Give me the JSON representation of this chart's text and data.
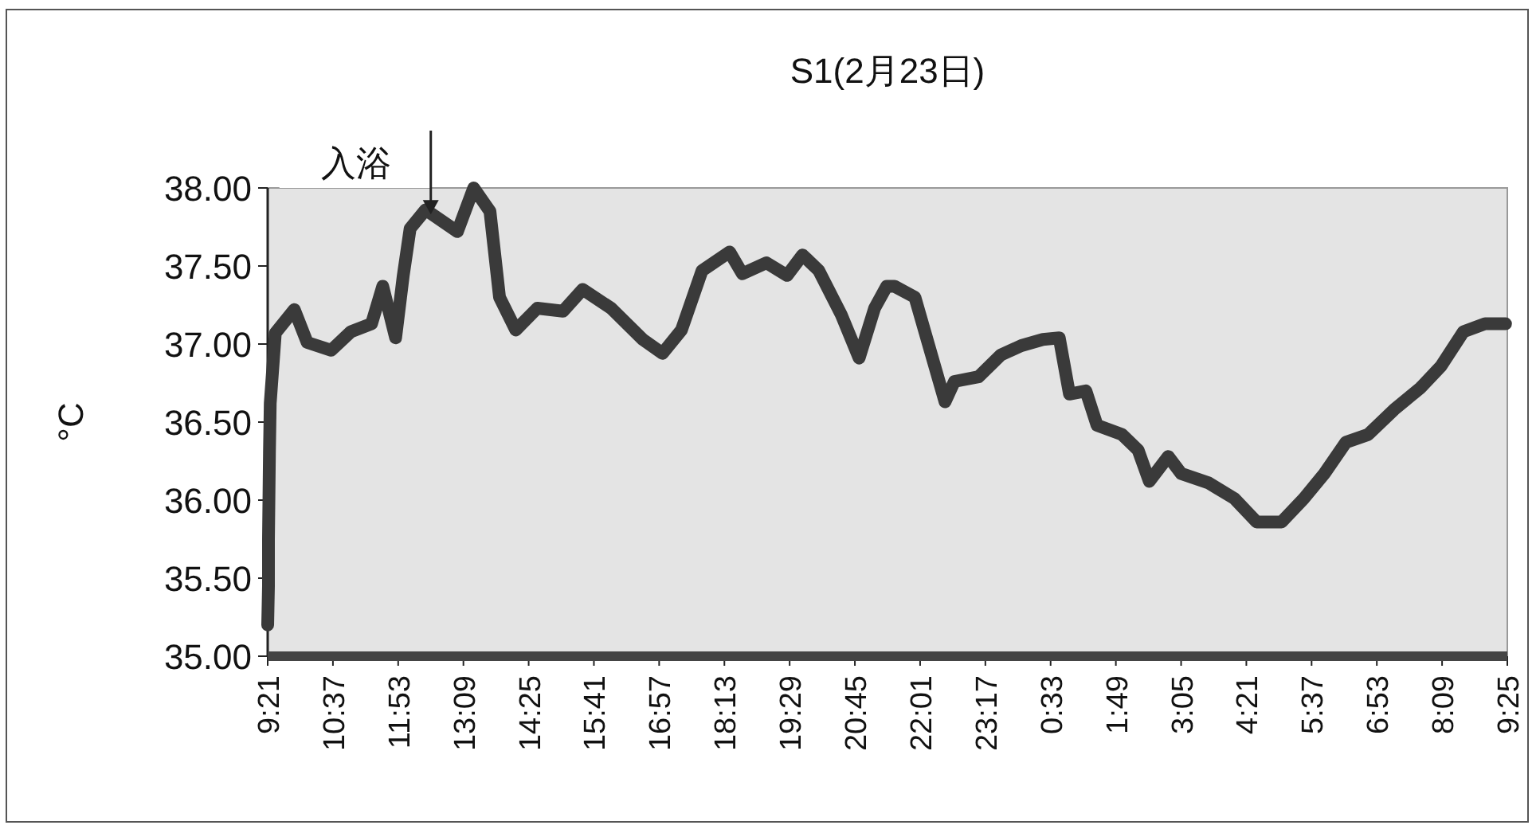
{
  "chart_data": {
    "type": "line",
    "title": "S1(2月23日)",
    "ylabel": "°C",
    "x": [
      "--02-23T09:21",
      "--02-23T09:22",
      "--02-23T09:22",
      "--02-23T09:23",
      "--02-23T09:24",
      "--02-23T09:30",
      "--02-23T09:52",
      "--02-23T10:07",
      "--02-23T10:35",
      "--02-23T10:58",
      "--02-23T11:22",
      "--02-23T11:35",
      "--02-23T11:50",
      "--02-23T11:59",
      "--02-23T12:07",
      "--02-23T12:25",
      "--02-23T13:02",
      "--02-23T13:21",
      "--02-23T13:40",
      "--02-23T13:51",
      "--02-23T14:10",
      "--02-23T14:35",
      "--02-23T15:05",
      "--02-23T15:28",
      "--02-23T16:01",
      "--02-23T16:38",
      "--02-23T17:01",
      "--02-23T17:23",
      "--02-23T17:47",
      "--02-23T18:19",
      "--02-23T18:34",
      "--02-23T19:02",
      "--02-23T19:26",
      "--02-23T19:44",
      "--02-23T20:03",
      "--02-23T20:29",
      "--02-23T20:50",
      "--02-23T21:08",
      "--02-23T21:22",
      "--02-23T21:31",
      "--02-23T21:55",
      "--02-23T22:30",
      "--02-23T22:41",
      "--02-23T23:09",
      "--02-23T23:35",
      "--02-23T23:59",
      "--02-24T00:24",
      "--02-24T00:43",
      "--02-24T00:55",
      "--02-24T01:14",
      "--02-24T01:27",
      "--02-24T01:56",
      "--02-24T02:15",
      "--02-24T02:28",
      "--02-24T02:50",
      "--02-24T03:05",
      "--02-24T03:37",
      "--02-24T04:07",
      "--02-24T04:33",
      "--02-24T05:02",
      "--02-24T05:28",
      "--02-24T05:52",
      "--02-24T06:17",
      "--02-24T06:43",
      "--02-24T07:13",
      "--02-24T07:44",
      "--02-24T08:08",
      "--02-24T08:34",
      "--02-24T08:59",
      "--02-24T09:23"
    ],
    "series": [
      {
        "color": "#3a3a3a",
        "values": [
          35.2,
          35.45,
          35.75,
          36.3,
          36.62,
          37.07,
          37.22,
          37.01,
          36.96,
          37.08,
          37.13,
          37.37,
          37.04,
          37.44,
          37.74,
          37.86,
          37.72,
          38.0,
          37.85,
          37.3,
          37.09,
          37.23,
          37.21,
          37.35,
          37.23,
          37.03,
          36.94,
          37.09,
          37.47,
          37.59,
          37.45,
          37.52,
          37.44,
          37.57,
          37.47,
          37.19,
          36.91,
          37.23,
          37.37,
          37.37,
          37.3,
          36.63,
          36.76,
          36.79,
          36.93,
          36.99,
          37.03,
          37.04,
          36.68,
          36.7,
          36.48,
          36.42,
          36.32,
          36.12,
          36.28,
          36.17,
          36.11,
          36.01,
          35.86,
          35.86,
          36.01,
          36.17,
          36.37,
          36.42,
          36.58,
          36.72,
          36.86,
          37.08,
          37.13,
          37.13
        ]
      }
    ],
    "xlim": [
      "--02-23T09:21",
      "--02-24T09:25"
    ],
    "xticks": [
      {
        "value": "--02-23T09:21",
        "label": "9:21"
      },
      {
        "value": "--02-23T10:37",
        "label": "10:37"
      },
      {
        "value": "--02-23T11:53",
        "label": "11:53"
      },
      {
        "value": "--02-23T13:09",
        "label": "13:09"
      },
      {
        "value": "--02-23T14:25",
        "label": "14:25"
      },
      {
        "value": "--02-23T15:41",
        "label": "15:41"
      },
      {
        "value": "--02-23T16:57",
        "label": "16:57"
      },
      {
        "value": "--02-23T18:13",
        "label": "18:13"
      },
      {
        "value": "--02-23T19:29",
        "label": "19:29"
      },
      {
        "value": "--02-23T20:45",
        "label": "20:45"
      },
      {
        "value": "--02-23T22:01",
        "label": "22:01"
      },
      {
        "value": "--02-23T23:17",
        "label": "23:17"
      },
      {
        "value": "--02-24T00:33",
        "label": "0:33"
      },
      {
        "value": "--02-24T01:49",
        "label": "1:49"
      },
      {
        "value": "--02-24T03:05",
        "label": "3:05"
      },
      {
        "value": "--02-24T04:21",
        "label": "4:21"
      },
      {
        "value": "--02-24T05:37",
        "label": "5:37"
      },
      {
        "value": "--02-24T06:53",
        "label": "6:53"
      },
      {
        "value": "--02-24T08:09",
        "label": "8:09"
      },
      {
        "value": "--02-24T09:25",
        "label": "9:25"
      }
    ],
    "ylim": [
      35,
      38
    ],
    "yticks": [
      {
        "value": 35,
        "label": "35.00"
      },
      {
        "value": 35.5,
        "label": "35.50"
      },
      {
        "value": 36,
        "label": "36.00"
      },
      {
        "value": 36.5,
        "label": "36.50"
      },
      {
        "value": 37,
        "label": "37.00"
      },
      {
        "value": 37.5,
        "label": "37.50"
      },
      {
        "value": 38,
        "label": "38.00"
      }
    ],
    "annotations": [
      {
        "text": "入浴",
        "x": "--02-23T12:31",
        "y": 37.8
      }
    ]
  }
}
